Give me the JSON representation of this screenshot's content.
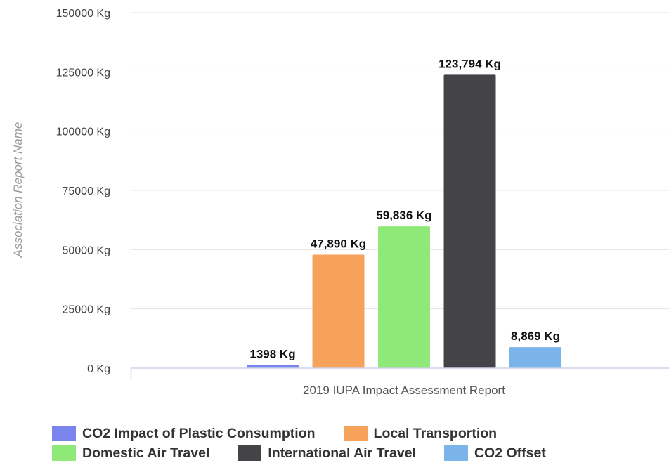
{
  "chart_data": {
    "type": "bar",
    "title": "",
    "ylabel": "Association Report Name",
    "xlabel": "",
    "categories": [
      "2019 IUPA Impact Assessment Report"
    ],
    "series": [
      {
        "name": "CO2 Impact of Plastic Consumption",
        "values": [
          1398
        ],
        "label": "1398 Kg",
        "color": "#7b83ec"
      },
      {
        "name": "Local Transportion",
        "values": [
          47890
        ],
        "label": "47,890 Kg",
        "color": "#f6a25b"
      },
      {
        "name": "Domestic Air Travel",
        "values": [
          59836
        ],
        "label": "59,836 Kg",
        "color": "#8fe978"
      },
      {
        "name": "International Air Travel",
        "values": [
          123794
        ],
        "label": "123,794 Kg",
        "color": "#444448"
      },
      {
        "name": "CO2 Offset",
        "values": [
          8869
        ],
        "label": "8,869 Kg",
        "color": "#7bb4e9"
      }
    ],
    "ylim": [
      0,
      150000
    ],
    "yticks": [
      0,
      25000,
      50000,
      75000,
      100000,
      125000,
      150000
    ],
    "ytick_labels": [
      "0 Kg",
      "25000 Kg",
      "50000 Kg",
      "75000 Kg",
      "100000 Kg",
      "125000 Kg",
      "150000 Kg"
    ],
    "grid": true,
    "legend_position": "bottom"
  }
}
